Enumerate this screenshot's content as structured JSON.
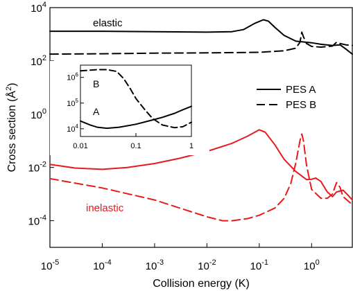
{
  "chart_data": [
    {
      "type": "line",
      "title": "",
      "xlabel": "Collision energy (K)",
      "ylabel_main": "Cross section (Å",
      "ylabel_sup": "2",
      "ylabel_end": ")",
      "xscale": "log",
      "yscale": "log",
      "xlim": [
        1e-05,
        6
      ],
      "ylim": [
        1e-05,
        10000
      ],
      "x_ticks": [
        {
          "value": 1e-05,
          "base": "10",
          "exp": "-5"
        },
        {
          "value": 0.0001,
          "base": "10",
          "exp": "-4"
        },
        {
          "value": 0.001,
          "base": "10",
          "exp": "-3"
        },
        {
          "value": 0.01,
          "base": "10",
          "exp": "-2"
        },
        {
          "value": 0.1,
          "base": "10",
          "exp": "-1"
        },
        {
          "value": 1,
          "base": "10",
          "exp": "0"
        }
      ],
      "y_ticks": [
        {
          "value": 0.0001,
          "base": "10",
          "exp": "-4"
        },
        {
          "value": 0.01,
          "base": "10",
          "exp": "-2"
        },
        {
          "value": 1,
          "base": "10",
          "exp": "0"
        },
        {
          "value": 100,
          "base": "10",
          "exp": "2"
        },
        {
          "value": 10000,
          "base": "10",
          "exp": "4"
        }
      ],
      "legend": {
        "placement": "right-middle",
        "entries": [
          {
            "label": "PES A",
            "dash": "solid"
          },
          {
            "label": "PES B",
            "dash": "dashed"
          }
        ]
      },
      "annotations": [
        {
          "text": "elastic",
          "color": "#000000"
        },
        {
          "text": "inelastic",
          "color": "#e8191a"
        }
      ],
      "colors": {
        "elastic": "#000000",
        "inelastic": "#e8191a"
      },
      "series": [
        {
          "group": "elastic",
          "pes": "A",
          "dash": "solid",
          "color": "#000000",
          "points": [
            [
              1e-05,
              1300
            ],
            [
              0.0001,
              1300
            ],
            [
              0.001,
              1250
            ],
            [
              0.01,
              1200
            ],
            [
              0.03,
              1250
            ],
            [
              0.05,
              1500
            ],
            [
              0.08,
              2500
            ],
            [
              0.12,
              3500
            ],
            [
              0.15,
              3100
            ],
            [
              0.2,
              1800
            ],
            [
              0.3,
              900
            ],
            [
              0.5,
              550
            ],
            [
              0.8,
              500
            ],
            [
              1.0,
              480
            ],
            [
              1.5,
              420
            ],
            [
              2.5,
              380
            ],
            [
              3.5,
              400
            ],
            [
              4.5,
              280
            ],
            [
              6,
              180
            ]
          ]
        },
        {
          "group": "elastic",
          "pes": "B",
          "dash": "dashed",
          "color": "#000000",
          "points": [
            [
              1e-05,
              180
            ],
            [
              0.0001,
              185
            ],
            [
              0.001,
              195
            ],
            [
              0.01,
              200
            ],
            [
              0.1,
              210
            ],
            [
              0.3,
              240
            ],
            [
              0.5,
              300
            ],
            [
              0.6,
              500
            ],
            [
              0.65,
              1200
            ],
            [
              0.7,
              800
            ],
            [
              0.8,
              450
            ],
            [
              1.0,
              350
            ],
            [
              1.5,
              330
            ],
            [
              2.5,
              360
            ],
            [
              3.0,
              500
            ],
            [
              3.5,
              450
            ],
            [
              4.5,
              400
            ],
            [
              6,
              380
            ]
          ]
        },
        {
          "group": "inelastic",
          "pes": "A",
          "dash": "solid",
          "color": "#e8191a",
          "points": [
            [
              1e-05,
              0.013
            ],
            [
              3e-05,
              0.0095
            ],
            [
              0.0001,
              0.0085
            ],
            [
              0.0003,
              0.01
            ],
            [
              0.001,
              0.014
            ],
            [
              0.003,
              0.022
            ],
            [
              0.01,
              0.04
            ],
            [
              0.03,
              0.08
            ],
            [
              0.06,
              0.15
            ],
            [
              0.1,
              0.26
            ],
            [
              0.13,
              0.21
            ],
            [
              0.2,
              0.07
            ],
            [
              0.3,
              0.02
            ],
            [
              0.5,
              0.007
            ],
            [
              0.8,
              0.0035
            ],
            [
              1.0,
              0.0036
            ],
            [
              1.2,
              0.004
            ],
            [
              1.5,
              0.003
            ],
            [
              2.0,
              0.0012
            ],
            [
              2.5,
              0.0008
            ],
            [
              3.0,
              0.0012
            ],
            [
              4.0,
              0.0014
            ],
            [
              5.0,
              0.0009
            ],
            [
              6,
              0.0006
            ]
          ]
        },
        {
          "group": "inelastic",
          "pes": "B",
          "dash": "dashed",
          "color": "#e8191a",
          "points": [
            [
              1e-05,
              0.0038
            ],
            [
              0.0001,
              0.0017
            ],
            [
              0.001,
              0.0006
            ],
            [
              0.003,
              0.0003
            ],
            [
              0.01,
              0.00014
            ],
            [
              0.02,
              0.0001
            ],
            [
              0.03,
              0.0001
            ],
            [
              0.06,
              0.00012
            ],
            [
              0.1,
              0.00016
            ],
            [
              0.2,
              0.0003
            ],
            [
              0.3,
              0.0007
            ],
            [
              0.4,
              0.0025
            ],
            [
              0.5,
              0.015
            ],
            [
              0.6,
              0.1
            ],
            [
              0.65,
              0.18
            ],
            [
              0.7,
              0.1
            ],
            [
              0.8,
              0.012
            ],
            [
              1.0,
              0.0015
            ],
            [
              1.5,
              0.0007
            ],
            [
              2.0,
              0.0007
            ],
            [
              2.5,
              0.001
            ],
            [
              3.0,
              0.0027
            ],
            [
              3.5,
              0.0018
            ],
            [
              4.0,
              0.0008
            ],
            [
              5.0,
              0.00055
            ],
            [
              6,
              0.0004
            ]
          ]
        }
      ]
    },
    {
      "type": "line",
      "title": "",
      "xscale": "log",
      "yscale": "log",
      "xlim": [
        0.01,
        1
      ],
      "ylim": [
        5000,
        3000000
      ],
      "x_ticks": [
        {
          "value": 0.01,
          "label": "0.01"
        },
        {
          "value": 0.1,
          "label": "0.1"
        },
        {
          "value": 1,
          "label": "1"
        }
      ],
      "y_ticks": [
        {
          "value": 10000,
          "base": "10",
          "exp": "4"
        },
        {
          "value": 100000,
          "base": "10",
          "exp": "5"
        },
        {
          "value": 1000000,
          "base": "10",
          "exp": "6"
        }
      ],
      "annotations": [
        {
          "text": "A"
        },
        {
          "text": "B"
        }
      ],
      "series": [
        {
          "name": "A",
          "dash": "solid",
          "color": "#000000",
          "points": [
            [
              0.01,
              20000
            ],
            [
              0.015,
              14000
            ],
            [
              0.02,
              11500
            ],
            [
              0.03,
              10500
            ],
            [
              0.05,
              11500
            ],
            [
              0.1,
              15000
            ],
            [
              0.2,
              22000
            ],
            [
              0.3,
              28000
            ],
            [
              0.5,
              40000
            ],
            [
              0.7,
              55000
            ],
            [
              1,
              75000
            ]
          ]
        },
        {
          "name": "B",
          "dash": "dashed",
          "color": "#000000",
          "points": [
            [
              0.01,
              1800000
            ],
            [
              0.02,
              2000000
            ],
            [
              0.03,
              2000000
            ],
            [
              0.045,
              1700000
            ],
            [
              0.06,
              900000
            ],
            [
              0.08,
              350000
            ],
            [
              0.1,
              150000
            ],
            [
              0.15,
              50000
            ],
            [
              0.2,
              25000
            ],
            [
              0.3,
              14000
            ],
            [
              0.5,
              11000
            ],
            [
              0.7,
              12000
            ],
            [
              1,
              18000
            ]
          ]
        }
      ]
    }
  ]
}
